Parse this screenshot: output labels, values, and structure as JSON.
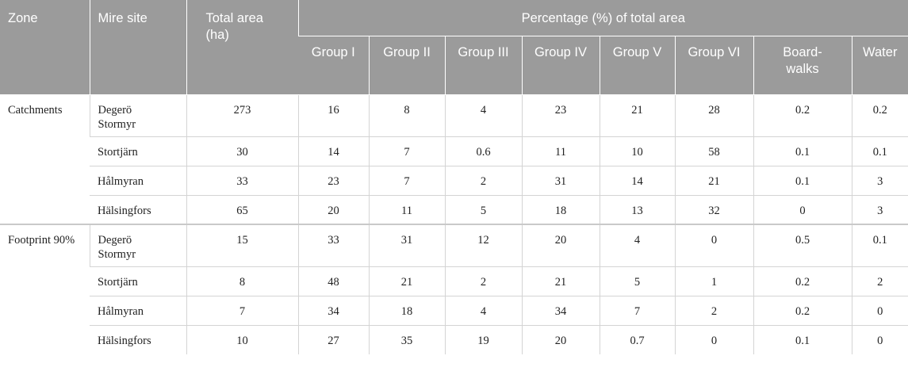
{
  "header": {
    "zone": "Zone",
    "site": "Mire site",
    "total_area": "Total area (ha)",
    "percentage": "Percentage (%) of total area",
    "groups": [
      "Group I",
      "Group II",
      "Group III",
      "Group IV",
      "Group V",
      "Group VI",
      "Board-walks",
      "Water"
    ]
  },
  "sections": [
    {
      "zone": "Catchments",
      "rows": [
        {
          "site": "Degerö Stormyr",
          "total": "273",
          "values": [
            "16",
            "8",
            "4",
            "23",
            "21",
            "28",
            "0.2",
            "0.2"
          ]
        },
        {
          "site": "Stortjärn",
          "total": "30",
          "values": [
            "14",
            "7",
            "0.6",
            "11",
            "10",
            "58",
            "0.1",
            "0.1"
          ]
        },
        {
          "site": "Hålmyran",
          "total": "33",
          "values": [
            "23",
            "7",
            "2",
            "31",
            "14",
            "21",
            "0.1",
            "3"
          ]
        },
        {
          "site": "Hälsingfors",
          "total": "65",
          "values": [
            "20",
            "11",
            "5",
            "18",
            "13",
            "32",
            "0",
            "3"
          ]
        }
      ]
    },
    {
      "zone": "Footprint 90%",
      "rows": [
        {
          "site": "Degerö Stormyr",
          "total": "15",
          "values": [
            "33",
            "31",
            "12",
            "20",
            "4",
            "0",
            "0.5",
            "0.1"
          ]
        },
        {
          "site": "Stortjärn",
          "total": "8",
          "values": [
            "48",
            "21",
            "2",
            "21",
            "5",
            "1",
            "0.2",
            "2"
          ]
        },
        {
          "site": "Hålmyran",
          "total": "7",
          "values": [
            "34",
            "18",
            "4",
            "34",
            "7",
            "2",
            "0.2",
            "0"
          ]
        },
        {
          "site": "Hälsingfors",
          "total": "10",
          "values": [
            "27",
            "35",
            "19",
            "20",
            "0.7",
            "0",
            "0.1",
            "0"
          ]
        }
      ]
    }
  ]
}
